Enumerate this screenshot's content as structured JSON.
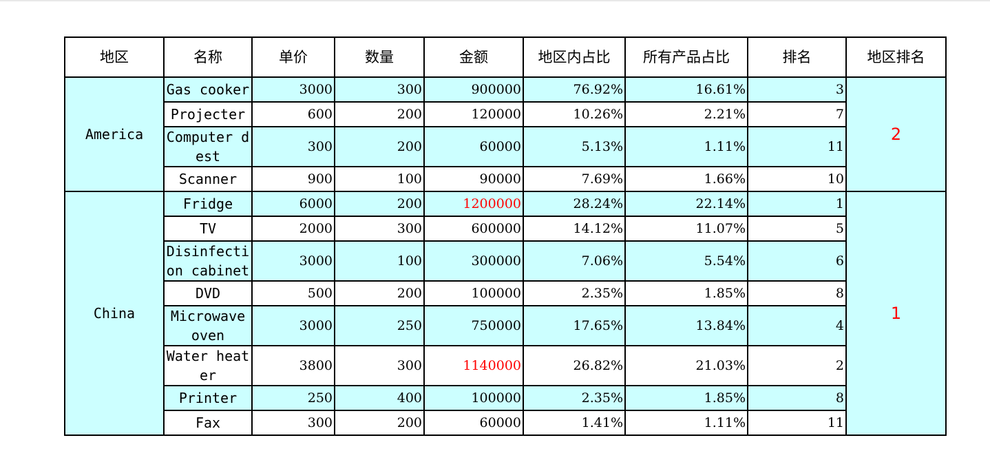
{
  "headers": [
    "地区",
    "名称",
    "单价",
    "数量",
    "金额",
    "地区内占比",
    "所有产品占比",
    "排名",
    "地区排名"
  ],
  "regions": [
    {
      "name": "America",
      "rank": "2",
      "rows": [
        {
          "name": "Gas cooker",
          "price": "3000",
          "qty": "300",
          "amount": "900000",
          "region_pct": "76.92%",
          "total_pct": "16.61%",
          "rank": "3",
          "amount_highlight": false
        },
        {
          "name": "Projecter",
          "price": "600",
          "qty": "200",
          "amount": "120000",
          "region_pct": "10.26%",
          "total_pct": "2.21%",
          "rank": "7",
          "amount_highlight": false
        },
        {
          "name": "Computer dest",
          "price": "300",
          "qty": "200",
          "amount": "60000",
          "region_pct": "5.13%",
          "total_pct": "1.11%",
          "rank": "11",
          "amount_highlight": false
        },
        {
          "name": "Scanner",
          "price": "900",
          "qty": "100",
          "amount": "90000",
          "region_pct": "7.69%",
          "total_pct": "1.66%",
          "rank": "10",
          "amount_highlight": false
        }
      ]
    },
    {
      "name": "China",
      "rank": "1",
      "rows": [
        {
          "name": "Fridge",
          "price": "6000",
          "qty": "200",
          "amount": "1200000",
          "region_pct": "28.24%",
          "total_pct": "22.14%",
          "rank": "1",
          "amount_highlight": true
        },
        {
          "name": "TV",
          "price": "2000",
          "qty": "300",
          "amount": "600000",
          "region_pct": "14.12%",
          "total_pct": "11.07%",
          "rank": "5",
          "amount_highlight": false
        },
        {
          "name": "Disinfection cabinet",
          "price": "3000",
          "qty": "100",
          "amount": "300000",
          "region_pct": "7.06%",
          "total_pct": "5.54%",
          "rank": "6",
          "amount_highlight": false
        },
        {
          "name": "DVD",
          "price": "500",
          "qty": "200",
          "amount": "100000",
          "region_pct": "2.35%",
          "total_pct": "1.85%",
          "rank": "8",
          "amount_highlight": false
        },
        {
          "name": "Microwave oven",
          "price": "3000",
          "qty": "250",
          "amount": "750000",
          "region_pct": "17.65%",
          "total_pct": "13.84%",
          "rank": "4",
          "amount_highlight": false
        },
        {
          "name": "Water heater",
          "price": "3800",
          "qty": "300",
          "amount": "1140000",
          "region_pct": "26.82%",
          "total_pct": "21.03%",
          "rank": "2",
          "amount_highlight": true
        },
        {
          "name": "Printer",
          "price": "250",
          "qty": "400",
          "amount": "100000",
          "region_pct": "2.35%",
          "total_pct": "1.85%",
          "rank": "8",
          "amount_highlight": false
        },
        {
          "name": "Fax",
          "price": "300",
          "qty": "200",
          "amount": "60000",
          "region_pct": "1.41%",
          "total_pct": "1.11%",
          "rank": "11",
          "amount_highlight": false
        }
      ]
    }
  ],
  "colors": {
    "band": "#ccffff",
    "highlight": "#ff0000",
    "border": "#000000"
  }
}
